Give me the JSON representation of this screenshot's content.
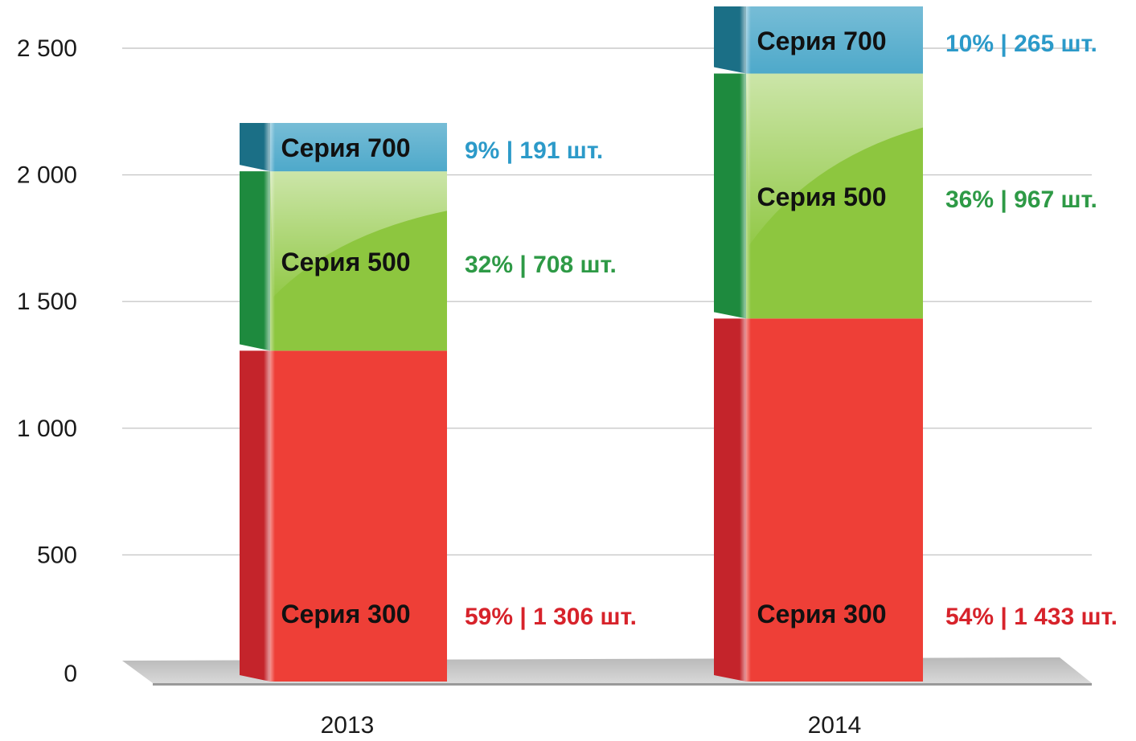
{
  "chart_data": {
    "type": "bar",
    "stacked": true,
    "categories": [
      "2013",
      "2014"
    ],
    "series": [
      {
        "name": "Серия 300",
        "values": [
          1306,
          1433
        ],
        "labels": [
          "59% | 1 306 шт.",
          "54% | 1 433 шт."
        ],
        "color": "#ee3f37",
        "side_color": "#c4242b",
        "label_color": "#d7232b"
      },
      {
        "name": "Серия 500",
        "values": [
          708,
          967
        ],
        "labels": [
          "32% | 708 шт.",
          "36% | 967 шт."
        ],
        "color": "#8dc63f",
        "side_color": "#1e8a3e",
        "label_color": "#2e9a46"
      },
      {
        "name": "Серия 700",
        "values": [
          191,
          265
        ],
        "labels": [
          "9% | 191 шт.",
          "10% | 265 шт."
        ],
        "color": "#4aa7c9",
        "side_color": "#1b6f86",
        "label_color": "#2c9ac9"
      }
    ],
    "yticks": [
      0,
      500,
      1000,
      1500,
      2000,
      2500
    ],
    "ytick_labels": [
      "0",
      "500",
      "1 000",
      "1 500",
      "2 000",
      "2 500"
    ],
    "ylim": [
      0,
      2500
    ],
    "grid": true,
    "title": "",
    "xlabel": "",
    "ylabel": ""
  }
}
